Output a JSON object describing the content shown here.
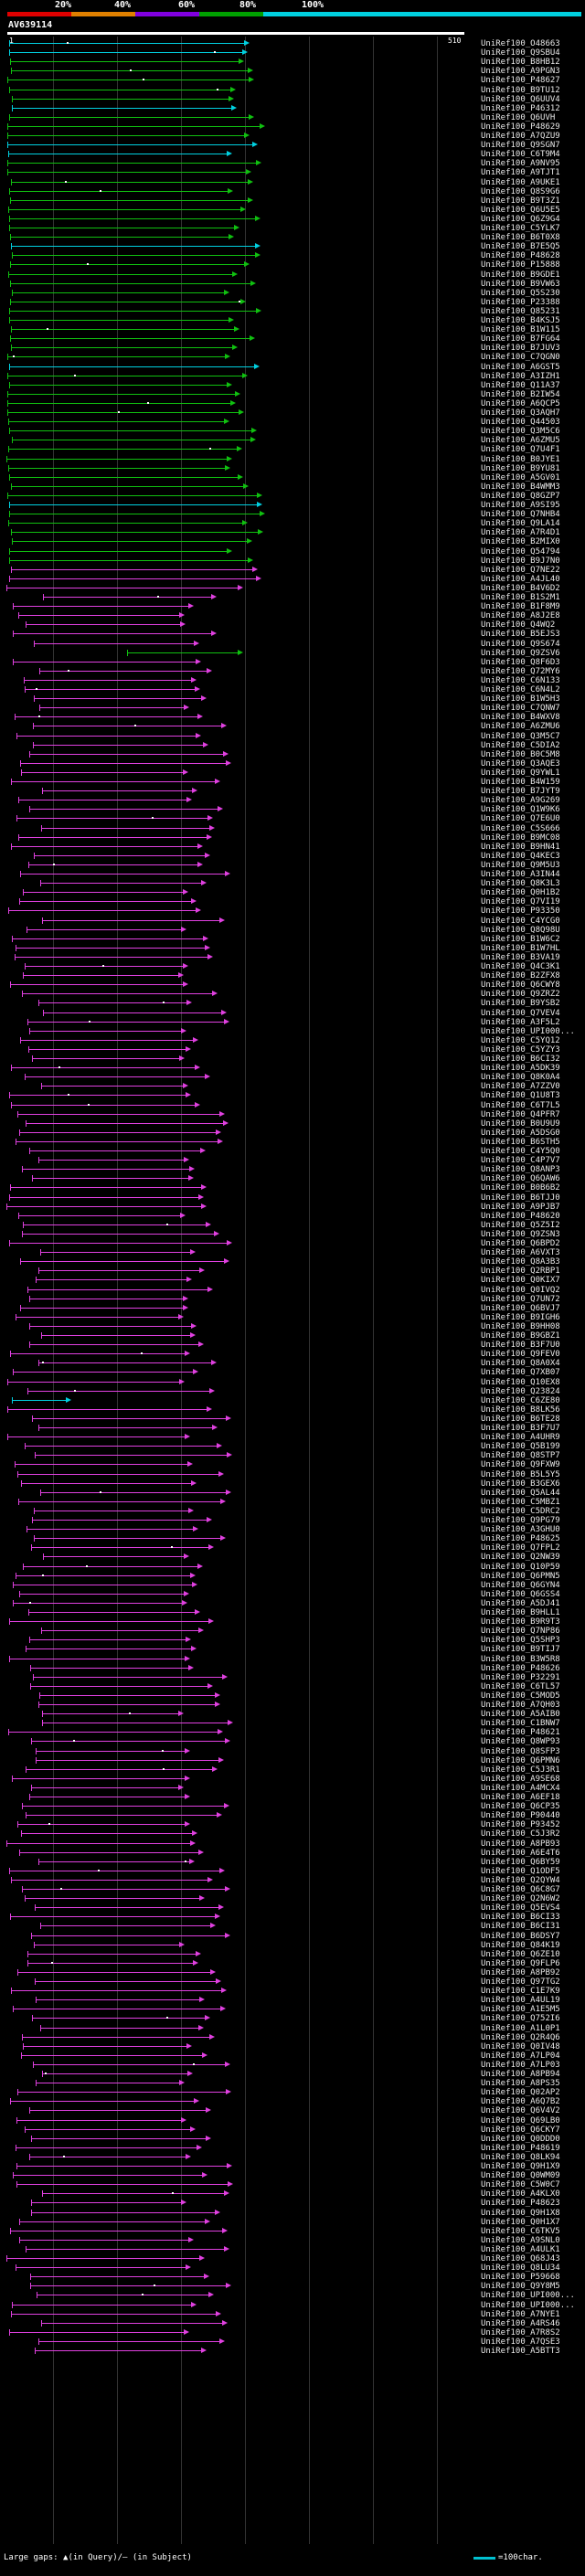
{
  "scale": {
    "labels": [
      "20%",
      "40%",
      "60%",
      "80%",
      "100%"
    ],
    "colors": [
      "#e00000",
      "#e08000",
      "#8000e0",
      "#00a000",
      "#00d0e0"
    ]
  },
  "query": {
    "title": "AV639114",
    "start": "1",
    "end": "510"
  },
  "legend": {
    "gaps_text": "Large gaps: ▲(in Query)/– (in Subject)",
    "scale_text": "=100char."
  },
  "colors": {
    "cyan": "#00d0e0",
    "green": "#10c010",
    "magenta": "#e040e0"
  },
  "hits": [
    {
      "label": "UniRef100_O48663",
      "color": "cyan"
    },
    {
      "label": "UniRef100_Q9SBU4",
      "color": "cyan"
    },
    {
      "label": "UniRef100_B8HB12",
      "color": "green"
    },
    {
      "label": "UniRef100_A9PGN3",
      "color": "green"
    },
    {
      "label": "UniRef100_P48627",
      "color": "green"
    },
    {
      "label": "UniRef100_B9TU12",
      "color": "green"
    },
    {
      "label": "UniRef100_Q6UUV4",
      "color": "green"
    },
    {
      "label": "UniRef100_P46312",
      "color": "cyan"
    },
    {
      "label": "UniRef100_Q6UVH",
      "color": "green"
    },
    {
      "label": "UniRef100_P48629",
      "color": "green"
    },
    {
      "label": "UniRef100_A7QZU9",
      "color": "green"
    },
    {
      "label": "UniRef100_Q9SGN7",
      "color": "cyan"
    },
    {
      "label": "UniRef100_C6T9M4",
      "color": "cyan"
    },
    {
      "label": "UniRef100_A9NV95",
      "color": "green"
    },
    {
      "label": "UniRef100_A9TJT1",
      "color": "green"
    },
    {
      "label": "UniRef100_A9UKE1",
      "color": "green"
    },
    {
      "label": "UniRef100_Q8S9G6",
      "color": "green"
    },
    {
      "label": "UniRef100_B9T3Z1",
      "color": "green"
    },
    {
      "label": "UniRef100_Q6U5E5",
      "color": "green"
    },
    {
      "label": "UniRef100_Q6Z9G4",
      "color": "green"
    },
    {
      "label": "UniRef100_C5YLK7",
      "color": "green"
    },
    {
      "label": "UniRef100_B6T0X8",
      "color": "green"
    },
    {
      "label": "UniRef100_B7E5Q5",
      "color": "cyan"
    },
    {
      "label": "UniRef100_P48628",
      "color": "green"
    },
    {
      "label": "UniRef100_P15888",
      "color": "green"
    },
    {
      "label": "UniRef100_B9GDE1",
      "color": "green"
    },
    {
      "label": "UniRef100_B9VW63",
      "color": "green"
    },
    {
      "label": "UniRef100_Q5S230",
      "color": "green"
    },
    {
      "label": "UniRef100_P23388",
      "color": "green"
    },
    {
      "label": "UniRef100_Q85231",
      "color": "green"
    },
    {
      "label": "UniRef100_B4KSJ5",
      "color": "green"
    },
    {
      "label": "UniRef100_B1W115",
      "color": "green"
    },
    {
      "label": "UniRef100_B7FG64",
      "color": "green"
    },
    {
      "label": "UniRef100_B7JUV3",
      "color": "green"
    },
    {
      "label": "UniRef100_C7QGN0",
      "color": "green"
    },
    {
      "label": "UniRef100_A6GST5",
      "color": "cyan"
    },
    {
      "label": "UniRef100_A3IZH1",
      "color": "green"
    },
    {
      "label": "UniRef100_Q11A37",
      "color": "green"
    },
    {
      "label": "UniRef100_B2IW54",
      "color": "green"
    },
    {
      "label": "UniRef100_A6QCP5",
      "color": "green"
    },
    {
      "label": "UniRef100_Q3AQH7",
      "color": "green"
    },
    {
      "label": "UniRef100_Q44503",
      "color": "green"
    },
    {
      "label": "UniRef100_Q3M5C6",
      "color": "green"
    },
    {
      "label": "UniRef100_A6ZMU5",
      "color": "green"
    },
    {
      "label": "UniRef100_Q7U4F1",
      "color": "green"
    },
    {
      "label": "UniRef100_B0JYE1",
      "color": "green"
    },
    {
      "label": "UniRef100_B9YU81",
      "color": "green"
    },
    {
      "label": "UniRef100_A5GV01",
      "color": "green"
    },
    {
      "label": "UniRef100_B4WMM3",
      "color": "green"
    },
    {
      "label": "UniRef100_Q8GZP7",
      "color": "green"
    },
    {
      "label": "UniRef100_A9SI95",
      "color": "cyan"
    },
    {
      "label": "UniRef100_Q7NHB4",
      "color": "green"
    },
    {
      "label": "UniRef100_Q9LA14",
      "color": "green"
    },
    {
      "label": "UniRef100_A7R4D1",
      "color": "green"
    },
    {
      "label": "UniRef100_B2MIX0",
      "color": "green"
    },
    {
      "label": "UniRef100_Q54794",
      "color": "green"
    },
    {
      "label": "UniRef100_B9J7N0",
      "color": "green"
    },
    {
      "label": "UniRef100_Q7NE22",
      "color": "magenta"
    },
    {
      "label": "UniRef100_A4JL40",
      "color": "magenta"
    },
    {
      "label": "UniRef100_B4V6D2",
      "color": "magenta"
    },
    {
      "label": "UniRef100_B1S2M1",
      "color": "magenta"
    },
    {
      "label": "UniRef100_B1F8M9",
      "color": "magenta"
    },
    {
      "label": "UniRef100_A8J2E8",
      "color": "magenta"
    },
    {
      "label": "UniRef100_Q4WQ2",
      "color": "magenta"
    },
    {
      "label": "UniRef100_B5EJS3",
      "color": "magenta"
    },
    {
      "label": "UniRef100_Q9S674",
      "color": "magenta"
    },
    {
      "label": "UniRef100_Q9ZSV6",
      "color": "green"
    },
    {
      "label": "UniRef100_Q8F6D3",
      "color": "magenta"
    },
    {
      "label": "UniRef100_Q72MY6",
      "color": "magenta"
    },
    {
      "label": "UniRef100_C6N133",
      "color": "magenta"
    },
    {
      "label": "UniRef100_C6N4L2",
      "color": "magenta"
    },
    {
      "label": "UniRef100_B1W5H3",
      "color": "magenta"
    },
    {
      "label": "UniRef100_C7QNW7",
      "color": "magenta"
    },
    {
      "label": "UniRef100_B4WXV8",
      "color": "magenta"
    },
    {
      "label": "UniRef100_A6ZMU6",
      "color": "magenta"
    },
    {
      "label": "UniRef100_Q3M5C7",
      "color": "magenta"
    },
    {
      "label": "UniRef100_C5DIA2",
      "color": "magenta"
    },
    {
      "label": "UniRef100_B0C5M8",
      "color": "magenta"
    },
    {
      "label": "UniRef100_Q3AQE3",
      "color": "magenta"
    },
    {
      "label": "UniRef100_Q9YWL1",
      "color": "magenta"
    },
    {
      "label": "UniRef100_B4W159",
      "color": "magenta"
    },
    {
      "label": "UniRef100_B7JYT9",
      "color": "magenta"
    },
    {
      "label": "UniRef100_A9G269",
      "color": "magenta"
    },
    {
      "label": "UniRef100_Q1W9K6",
      "color": "magenta"
    },
    {
      "label": "UniRef100_Q7E6U0",
      "color": "magenta"
    },
    {
      "label": "UniRef100_C5S666",
      "color": "magenta"
    },
    {
      "label": "UniRef100_B9MC08",
      "color": "magenta"
    },
    {
      "label": "UniRef100_B9HN41",
      "color": "magenta"
    },
    {
      "label": "UniRef100_Q4KEC3",
      "color": "magenta"
    },
    {
      "label": "UniRef100_Q9M5U3",
      "color": "magenta"
    },
    {
      "label": "UniRef100_A3IN44",
      "color": "magenta"
    },
    {
      "label": "UniRef100_Q8K3L3",
      "color": "magenta"
    },
    {
      "label": "UniRef100_Q0H1B2",
      "color": "magenta"
    },
    {
      "label": "UniRef100_Q7VI19",
      "color": "magenta"
    },
    {
      "label": "UniRef100_P93350",
      "color": "magenta"
    },
    {
      "label": "UniRef100_C4YCG0",
      "color": "magenta"
    },
    {
      "label": "UniRef100_Q8Q98U",
      "color": "magenta"
    },
    {
      "label": "UniRef100_B1W6C2",
      "color": "magenta"
    },
    {
      "label": "UniRef100_B1W7HL",
      "color": "magenta"
    },
    {
      "label": "UniRef100_B3VA19",
      "color": "magenta"
    },
    {
      "label": "UniRef100_Q4C3K1",
      "color": "magenta"
    },
    {
      "label": "UniRef100_B2ZFX8",
      "color": "magenta"
    },
    {
      "label": "UniRef100_Q6CWY8",
      "color": "magenta"
    },
    {
      "label": "UniRef100_Q9ZRZ2",
      "color": "magenta"
    },
    {
      "label": "UniRef100_B9YSB2",
      "color": "magenta"
    },
    {
      "label": "UniRef100_Q7VEV4",
      "color": "magenta"
    },
    {
      "label": "UniRef100_A3F5L2",
      "color": "magenta"
    },
    {
      "label": "UniRef100_UPI000...",
      "color": "magenta"
    },
    {
      "label": "UniRef100_C5YQ12",
      "color": "magenta"
    },
    {
      "label": "UniRef100_C5YZY3",
      "color": "magenta"
    },
    {
      "label": "UniRef100_B6CI32",
      "color": "magenta"
    },
    {
      "label": "UniRef100_A5DK39",
      "color": "magenta"
    },
    {
      "label": "UniRef100_Q8K0A4",
      "color": "magenta"
    },
    {
      "label": "UniRef100_A7ZZV0",
      "color": "magenta"
    },
    {
      "label": "UniRef100_Q1U8T3",
      "color": "magenta"
    },
    {
      "label": "UniRef100_C6T7L5",
      "color": "magenta"
    },
    {
      "label": "UniRef100_Q4PFR7",
      "color": "magenta"
    },
    {
      "label": "UniRef100_B0U9U9",
      "color": "magenta"
    },
    {
      "label": "UniRef100_A5DSG0",
      "color": "magenta"
    },
    {
      "label": "UniRef100_B6STH5",
      "color": "magenta"
    },
    {
      "label": "UniRef100_C4Y5Q0",
      "color": "magenta"
    },
    {
      "label": "UniRef100_C4P7V7",
      "color": "magenta"
    },
    {
      "label": "UniRef100_Q8ANP3",
      "color": "magenta"
    },
    {
      "label": "UniRef100_Q6QAW6",
      "color": "magenta"
    },
    {
      "label": "UniRef100_B0B6B2",
      "color": "magenta"
    },
    {
      "label": "UniRef100_B6TJJ0",
      "color": "magenta"
    },
    {
      "label": "UniRef100_A9PJB7",
      "color": "magenta"
    },
    {
      "label": "UniRef100_P48620",
      "color": "magenta"
    },
    {
      "label": "UniRef100_Q5Z5I2",
      "color": "magenta"
    },
    {
      "label": "UniRef100_Q9ZSN3",
      "color": "magenta"
    },
    {
      "label": "UniRef100_Q6BPD2",
      "color": "magenta"
    },
    {
      "label": "UniRef100_A6VXT3",
      "color": "magenta"
    },
    {
      "label": "UniRef100_Q8A3B3",
      "color": "magenta"
    },
    {
      "label": "UniRef100_Q2RBP1",
      "color": "magenta"
    },
    {
      "label": "UniRef100_Q0KIX7",
      "color": "magenta"
    },
    {
      "label": "UniRef100_Q0IVQ2",
      "color": "magenta"
    },
    {
      "label": "UniRef100_Q7UN72",
      "color": "magenta"
    },
    {
      "label": "UniRef100_Q6BVJ7",
      "color": "magenta"
    },
    {
      "label": "UniRef100_B9IGH6",
      "color": "magenta"
    },
    {
      "label": "UniRef100_B9HH08",
      "color": "magenta"
    },
    {
      "label": "UniRef100_B9GBZ1",
      "color": "magenta"
    },
    {
      "label": "UniRef100_B3F7U0",
      "color": "magenta"
    },
    {
      "label": "UniRef100_Q9FEV0",
      "color": "magenta"
    },
    {
      "label": "UniRef100_Q8A0X4",
      "color": "magenta"
    },
    {
      "label": "UniRef100_Q7XB07",
      "color": "magenta"
    },
    {
      "label": "UniRef100_Q10EX8",
      "color": "magenta"
    },
    {
      "label": "UniRef100_Q23824",
      "color": "magenta"
    },
    {
      "label": "UniRef100_C6ZE80",
      "color": "cyan"
    },
    {
      "label": "UniRef100_B8LK56",
      "color": "magenta"
    },
    {
      "label": "UniRef100_B6TE28",
      "color": "magenta"
    },
    {
      "label": "UniRef100_B3F7U7",
      "color": "magenta"
    },
    {
      "label": "UniRef100_A4UHR9",
      "color": "magenta"
    },
    {
      "label": "UniRef100_Q5B199",
      "color": "magenta"
    },
    {
      "label": "UniRef100_Q8STP7",
      "color": "magenta"
    },
    {
      "label": "UniRef100_Q9FXW9",
      "color": "magenta"
    },
    {
      "label": "UniRef100_B5L5Y5",
      "color": "magenta"
    },
    {
      "label": "UniRef100_B3GEX6",
      "color": "magenta"
    },
    {
      "label": "UniRef100_Q5AL44",
      "color": "magenta"
    },
    {
      "label": "UniRef100_C5MBZ1",
      "color": "magenta"
    },
    {
      "label": "UniRef100_C5DRC2",
      "color": "magenta"
    },
    {
      "label": "UniRef100_Q9PG79",
      "color": "magenta"
    },
    {
      "label": "UniRef100_A3GHU0",
      "color": "magenta"
    },
    {
      "label": "UniRef100_P48625",
      "color": "magenta"
    },
    {
      "label": "UniRef100_Q7FPL2",
      "color": "magenta"
    },
    {
      "label": "UniRef100_Q2NW39",
      "color": "magenta"
    },
    {
      "label": "UniRef100_Q10P59",
      "color": "magenta"
    },
    {
      "label": "UniRef100_Q6PMN5",
      "color": "magenta"
    },
    {
      "label": "UniRef100_Q6GYN4",
      "color": "magenta"
    },
    {
      "label": "UniRef100_Q6GSS4",
      "color": "magenta"
    },
    {
      "label": "UniRef100_A5DJ41",
      "color": "magenta"
    },
    {
      "label": "UniRef100_B9HLL1",
      "color": "magenta"
    },
    {
      "label": "UniRef100_B9R9T3",
      "color": "magenta"
    },
    {
      "label": "UniRef100_Q7NP86",
      "color": "magenta"
    },
    {
      "label": "UniRef100_Q5SHP3",
      "color": "magenta"
    },
    {
      "label": "UniRef100_B9TIJ7",
      "color": "magenta"
    },
    {
      "label": "UniRef100_B3W5R8",
      "color": "magenta"
    },
    {
      "label": "UniRef100_P48626",
      "color": "magenta"
    },
    {
      "label": "UniRef100_P32291",
      "color": "magenta"
    },
    {
      "label": "UniRef100_C6TL57",
      "color": "magenta"
    },
    {
      "label": "UniRef100_C5MOD5",
      "color": "magenta"
    },
    {
      "label": "UniRef100_A7QH03",
      "color": "magenta"
    },
    {
      "label": "UniRef100_A5AIB0",
      "color": "magenta"
    },
    {
      "label": "UniRef100_C1BNW7",
      "color": "magenta"
    },
    {
      "label": "UniRef100_P48621",
      "color": "magenta"
    },
    {
      "label": "UniRef100_Q8WP93",
      "color": "magenta"
    },
    {
      "label": "UniRef100_Q8SFP3",
      "color": "magenta"
    },
    {
      "label": "UniRef100_Q6PMN6",
      "color": "magenta"
    },
    {
      "label": "UniRef100_C5J3R1",
      "color": "magenta"
    },
    {
      "label": "UniRef100_A9SE68",
      "color": "magenta"
    },
    {
      "label": "UniRef100_A4MCX4",
      "color": "magenta"
    },
    {
      "label": "UniRef100_A6EF18",
      "color": "magenta"
    },
    {
      "label": "UniRef100_Q6CP35",
      "color": "magenta"
    },
    {
      "label": "UniRef100_P90440",
      "color": "magenta"
    },
    {
      "label": "UniRef100_P93452",
      "color": "magenta"
    },
    {
      "label": "UniRef100_C5J3R2",
      "color": "magenta"
    },
    {
      "label": "UniRef100_A8PB93",
      "color": "magenta"
    },
    {
      "label": "UniRef100_A6E4T6",
      "color": "magenta"
    },
    {
      "label": "UniRef100_Q6BY59",
      "color": "magenta"
    },
    {
      "label": "UniRef100_Q1ODF5",
      "color": "magenta"
    },
    {
      "label": "UniRef100_Q2QYW4",
      "color": "magenta"
    },
    {
      "label": "UniRef100_Q6C8G7",
      "color": "magenta"
    },
    {
      "label": "UniRef100_Q2N6W2",
      "color": "magenta"
    },
    {
      "label": "UniRef100_Q5EVS4",
      "color": "magenta"
    },
    {
      "label": "UniRef100_B6CI33",
      "color": "magenta"
    },
    {
      "label": "UniRef100_B6CI31",
      "color": "magenta"
    },
    {
      "label": "UniRef100_B6DSY7",
      "color": "magenta"
    },
    {
      "label": "UniRef100_Q84K19",
      "color": "magenta"
    },
    {
      "label": "UniRef100_Q6ZE10",
      "color": "magenta"
    },
    {
      "label": "UniRef100_Q9FLP6",
      "color": "magenta"
    },
    {
      "label": "UniRef100_A8PB92",
      "color": "magenta"
    },
    {
      "label": "UniRef100_Q97TG2",
      "color": "magenta"
    },
    {
      "label": "UniRef100_C1E7K9",
      "color": "magenta"
    },
    {
      "label": "UniRef100_A4UL19",
      "color": "magenta"
    },
    {
      "label": "UniRef100_A1E5M5",
      "color": "magenta"
    },
    {
      "label": "UniRef100_Q752I6",
      "color": "magenta"
    },
    {
      "label": "UniRef100_A1L0P1",
      "color": "magenta"
    },
    {
      "label": "UniRef100_Q2R4Q6",
      "color": "magenta"
    },
    {
      "label": "UniRef100_Q0IV48",
      "color": "magenta"
    },
    {
      "label": "UniRef100_A7LP04",
      "color": "magenta"
    },
    {
      "label": "UniRef100_A7LP03",
      "color": "magenta"
    },
    {
      "label": "UniRef100_A8PB94",
      "color": "magenta"
    },
    {
      "label": "UniRef100_A8PS35",
      "color": "magenta"
    },
    {
      "label": "UniRef100_Q02AP2",
      "color": "magenta"
    },
    {
      "label": "UniRef100_A6Q7B2",
      "color": "magenta"
    },
    {
      "label": "UniRef100_Q6V4V2",
      "color": "magenta"
    },
    {
      "label": "UniRef100_Q69LB0",
      "color": "magenta"
    },
    {
      "label": "UniRef100_Q6CKY7",
      "color": "magenta"
    },
    {
      "label": "UniRef100_Q0DDD0",
      "color": "magenta"
    },
    {
      "label": "UniRef100_P48619",
      "color": "magenta"
    },
    {
      "label": "UniRef100_Q8LK94",
      "color": "magenta"
    },
    {
      "label": "UniRef100_Q9H1X9",
      "color": "magenta"
    },
    {
      "label": "UniRef100_Q0WM09",
      "color": "magenta"
    },
    {
      "label": "UniRef100_C5W0C7",
      "color": "magenta"
    },
    {
      "label": "UniRef100_A4KLX0",
      "color": "magenta"
    },
    {
      "label": "UniRef100_P48623",
      "color": "magenta"
    },
    {
      "label": "UniRef100_Q9H1X8",
      "color": "magenta"
    },
    {
      "label": "UniRef100_Q0H1X7",
      "color": "magenta"
    },
    {
      "label": "UniRef100_C6TKV5",
      "color": "magenta"
    },
    {
      "label": "UniRef100_A9SNL0",
      "color": "magenta"
    },
    {
      "label": "UniRef100_A4ULK1",
      "color": "magenta"
    },
    {
      "label": "UniRef100_Q68J43",
      "color": "magenta"
    },
    {
      "label": "UniRef100_Q8LU34",
      "color": "magenta"
    },
    {
      "label": "UniRef100_P59668",
      "color": "magenta"
    },
    {
      "label": "UniRef100_Q9Y8M5",
      "color": "magenta"
    },
    {
      "label": "UniRef100_UPI000...",
      "color": "magenta"
    },
    {
      "label": "UniRef100_UPI000...",
      "color": "magenta"
    },
    {
      "label": "UniRef100_A7NYE1",
      "color": "magenta"
    },
    {
      "label": "UniRef100_A4RS46",
      "color": "magenta"
    },
    {
      "label": "UniRef100_A7R8S2",
      "color": "magenta"
    },
    {
      "label": "UniRef100_A7QSE3",
      "color": "magenta"
    },
    {
      "label": "UniRef100_A5BTT3",
      "color": "magenta"
    }
  ]
}
